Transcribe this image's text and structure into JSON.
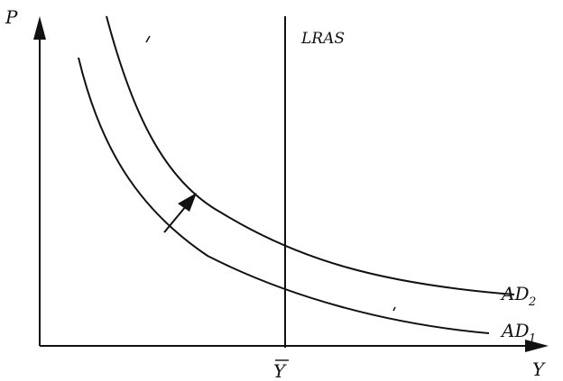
{
  "diagram": {
    "axis_y_label": "P",
    "axis_x_label": "Y",
    "vertical_line_label": "LRAS",
    "x_tick_label_base": "Y",
    "x_tick_label_overbar": true,
    "curve_upper_label_base": "AD",
    "curve_upper_label_sub": "2",
    "curve_lower_label_base": "AD",
    "curve_lower_label_sub": "1",
    "shift_arrow": "AD1 to AD2 (rightward shift)"
  },
  "colors": {
    "ink": "#111111",
    "background": "#ffffff"
  }
}
